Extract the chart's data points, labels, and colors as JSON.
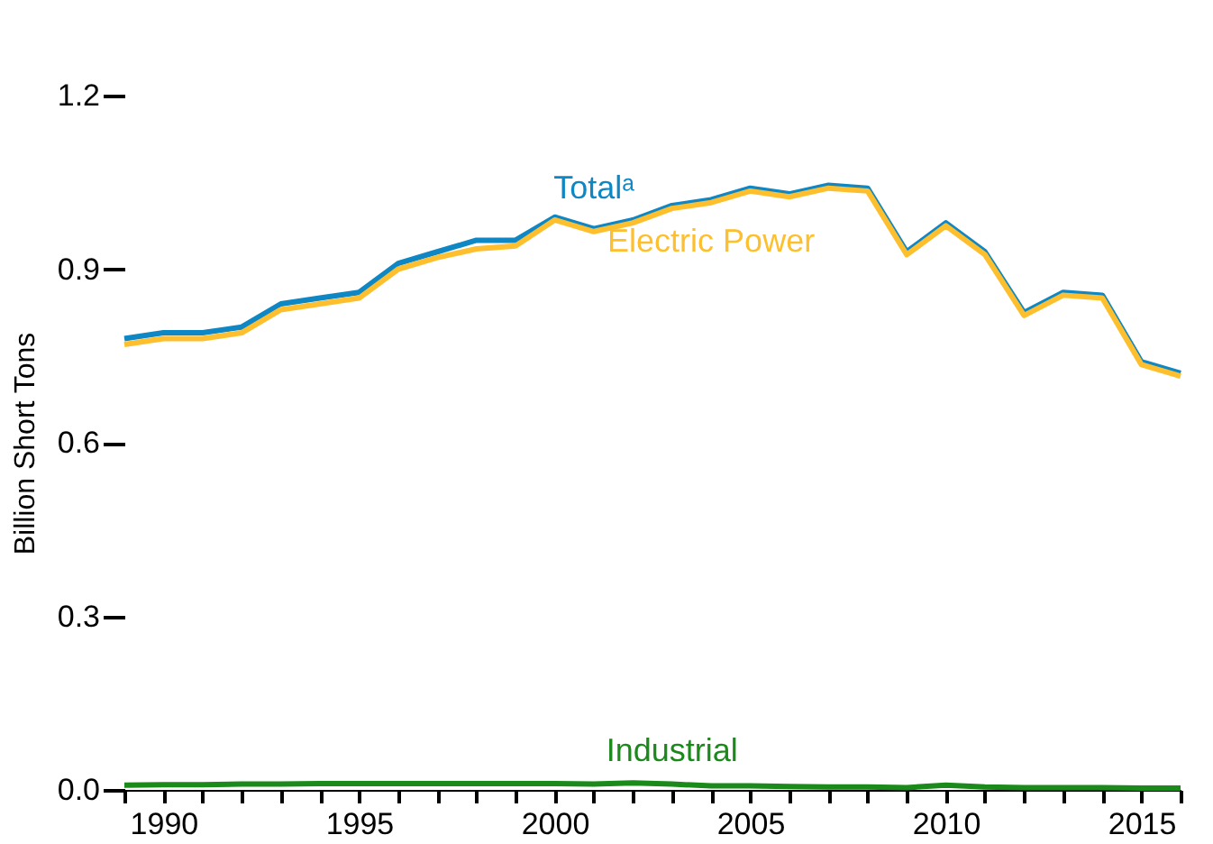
{
  "chart_data": {
    "type": "line",
    "ylabel": "Billion Short Tons",
    "x": [
      1989,
      1990,
      1991,
      1992,
      1993,
      1994,
      1995,
      1996,
      1997,
      1998,
      1999,
      2000,
      2001,
      2002,
      2003,
      2004,
      2005,
      2006,
      2007,
      2008,
      2009,
      2010,
      2011,
      2012,
      2013,
      2014,
      2015,
      2016
    ],
    "series": [
      {
        "name": "Totalᵃ",
        "color": "#0f87c4",
        "values": [
          0.78,
          0.79,
          0.79,
          0.8,
          0.84,
          0.85,
          0.86,
          0.91,
          0.93,
          0.95,
          0.95,
          0.99,
          0.97,
          0.985,
          1.01,
          1.02,
          1.04,
          1.03,
          1.045,
          1.04,
          0.93,
          0.98,
          0.93,
          0.825,
          0.86,
          0.855,
          0.74,
          0.72
        ]
      },
      {
        "name": "Electric Power",
        "color": "#fdbf2d",
        "values": [
          0.77,
          0.78,
          0.78,
          0.79,
          0.83,
          0.84,
          0.85,
          0.9,
          0.92,
          0.935,
          0.94,
          0.985,
          0.965,
          0.98,
          1.005,
          1.015,
          1.035,
          1.025,
          1.04,
          1.035,
          0.925,
          0.975,
          0.925,
          0.82,
          0.855,
          0.85,
          0.735,
          0.715
        ]
      },
      {
        "name": "Industrial",
        "color": "#1a8a1a",
        "values": [
          0.008,
          0.009,
          0.009,
          0.01,
          0.01,
          0.011,
          0.011,
          0.011,
          0.011,
          0.011,
          0.011,
          0.011,
          0.01,
          0.012,
          0.01,
          0.007,
          0.007,
          0.006,
          0.005,
          0.005,
          0.004,
          0.008,
          0.005,
          0.004,
          0.004,
          0.004,
          0.003,
          0.003
        ]
      }
    ],
    "xlim": [
      1989,
      2016
    ],
    "xticks": [
      {
        "value": 1989,
        "label": null
      },
      1990,
      {
        "value": 1991,
        "label": null
      },
      {
        "value": 1992,
        "label": null
      },
      {
        "value": 1993,
        "label": null
      },
      {
        "value": 1994,
        "label": null
      },
      1995,
      {
        "value": 1996,
        "label": null
      },
      {
        "value": 1997,
        "label": null
      },
      {
        "value": 1998,
        "label": null
      },
      {
        "value": 1999,
        "label": null
      },
      2000,
      {
        "value": 2001,
        "label": null
      },
      {
        "value": 2002,
        "label": null
      },
      {
        "value": 2003,
        "label": null
      },
      {
        "value": 2004,
        "label": null
      },
      2005,
      {
        "value": 2006,
        "label": null
      },
      {
        "value": 2007,
        "label": null
      },
      {
        "value": 2008,
        "label": null
      },
      {
        "value": 2009,
        "label": null
      },
      2010,
      {
        "value": 2011,
        "label": null
      },
      {
        "value": 2012,
        "label": null
      },
      {
        "value": 2013,
        "label": null
      },
      {
        "value": 2014,
        "label": null
      },
      2015,
      {
        "value": 2016,
        "label": null
      }
    ],
    "ylim": [
      0,
      1.2
    ],
    "yticks": [
      {
        "value": 0,
        "label": "0.0"
      },
      0.3,
      0.6,
      0.9,
      1.2
    ],
    "grid": false,
    "legend": false,
    "marker": "none",
    "line_style": "solid"
  }
}
